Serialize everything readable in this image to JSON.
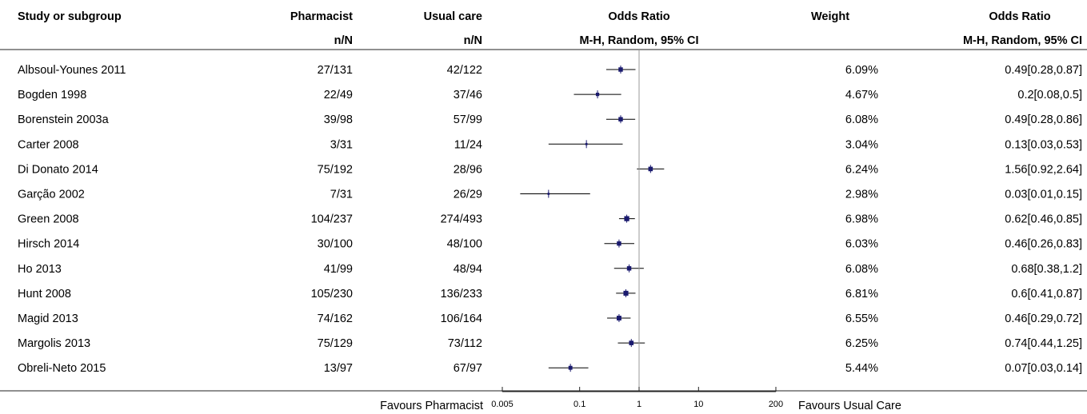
{
  "header": {
    "study": "Study or subgroup",
    "group1": "Pharmacist",
    "group1_sub": "n/N",
    "group2": "Usual care",
    "group2_sub": "n/N",
    "plot": "Odds Ratio",
    "plot_sub": "M-H, Random, 95% CI",
    "weight": "Weight",
    "ci": "Odds Ratio",
    "ci_sub": "M-H, Random, 95% CI"
  },
  "footer": {
    "favours_left": "Favours Pharmacist",
    "favours_right": "Favours Usual Care"
  },
  "chart_data": {
    "type": "forest",
    "scale": "log",
    "xlim": [
      0.005,
      200
    ],
    "ticks": [
      "0.005",
      "0.1",
      "1",
      "10",
      "200"
    ],
    "tick_values": [
      0.005,
      0.1,
      1,
      10,
      200
    ],
    "null_line": 1,
    "marker_color": "#1a1a6e",
    "studies": [
      {
        "name": "Albsoul-Younes 2011",
        "g1": "27/131",
        "g2": "42/122",
        "weight": "6.09%",
        "or": 0.49,
        "lo": 0.28,
        "hi": 0.87,
        "ci_text": "0.49[0.28,0.87]"
      },
      {
        "name": "Bogden 1998",
        "g1": "22/49",
        "g2": "37/46",
        "weight": "4.67%",
        "or": 0.2,
        "lo": 0.08,
        "hi": 0.5,
        "ci_text": "0.2[0.08,0.5]"
      },
      {
        "name": "Borenstein 2003a",
        "g1": "39/98",
        "g2": "57/99",
        "weight": "6.08%",
        "or": 0.49,
        "lo": 0.28,
        "hi": 0.86,
        "ci_text": "0.49[0.28,0.86]"
      },
      {
        "name": "Carter 2008",
        "g1": "3/31",
        "g2": "11/24",
        "weight": "3.04%",
        "or": 0.13,
        "lo": 0.03,
        "hi": 0.53,
        "ci_text": "0.13[0.03,0.53]"
      },
      {
        "name": "Di Donato 2014",
        "g1": "75/192",
        "g2": "28/96",
        "weight": "6.24%",
        "or": 1.56,
        "lo": 0.92,
        "hi": 2.64,
        "ci_text": "1.56[0.92,2.64]"
      },
      {
        "name": "Garção 2002",
        "g1": "7/31",
        "g2": "26/29",
        "weight": "2.98%",
        "or": 0.03,
        "lo": 0.01,
        "hi": 0.15,
        "ci_text": "0.03[0.01,0.15]"
      },
      {
        "name": "Green 2008",
        "g1": "104/237",
        "g2": "274/493",
        "weight": "6.98%",
        "or": 0.62,
        "lo": 0.46,
        "hi": 0.85,
        "ci_text": "0.62[0.46,0.85]"
      },
      {
        "name": "Hirsch 2014",
        "g1": "30/100",
        "g2": "48/100",
        "weight": "6.03%",
        "or": 0.46,
        "lo": 0.26,
        "hi": 0.83,
        "ci_text": "0.46[0.26,0.83]"
      },
      {
        "name": "Ho 2013",
        "g1": "41/99",
        "g2": "48/94",
        "weight": "6.08%",
        "or": 0.68,
        "lo": 0.38,
        "hi": 1.2,
        "ci_text": "0.68[0.38,1.2]"
      },
      {
        "name": "Hunt 2008",
        "g1": "105/230",
        "g2": "136/233",
        "weight": "6.81%",
        "or": 0.6,
        "lo": 0.41,
        "hi": 0.87,
        "ci_text": "0.6[0.41,0.87]"
      },
      {
        "name": "Magid 2013",
        "g1": "74/162",
        "g2": "106/164",
        "weight": "6.55%",
        "or": 0.46,
        "lo": 0.29,
        "hi": 0.72,
        "ci_text": "0.46[0.29,0.72]"
      },
      {
        "name": "Margolis 2013",
        "g1": "75/129",
        "g2": "73/112",
        "weight": "6.25%",
        "or": 0.74,
        "lo": 0.44,
        "hi": 1.25,
        "ci_text": "0.74[0.44,1.25]"
      },
      {
        "name": "Obreli-Neto 2015",
        "g1": "13/97",
        "g2": "67/97",
        "weight": "5.44%",
        "or": 0.07,
        "lo": 0.03,
        "hi": 0.14,
        "ci_text": "0.07[0.03,0.14]"
      }
    ]
  }
}
